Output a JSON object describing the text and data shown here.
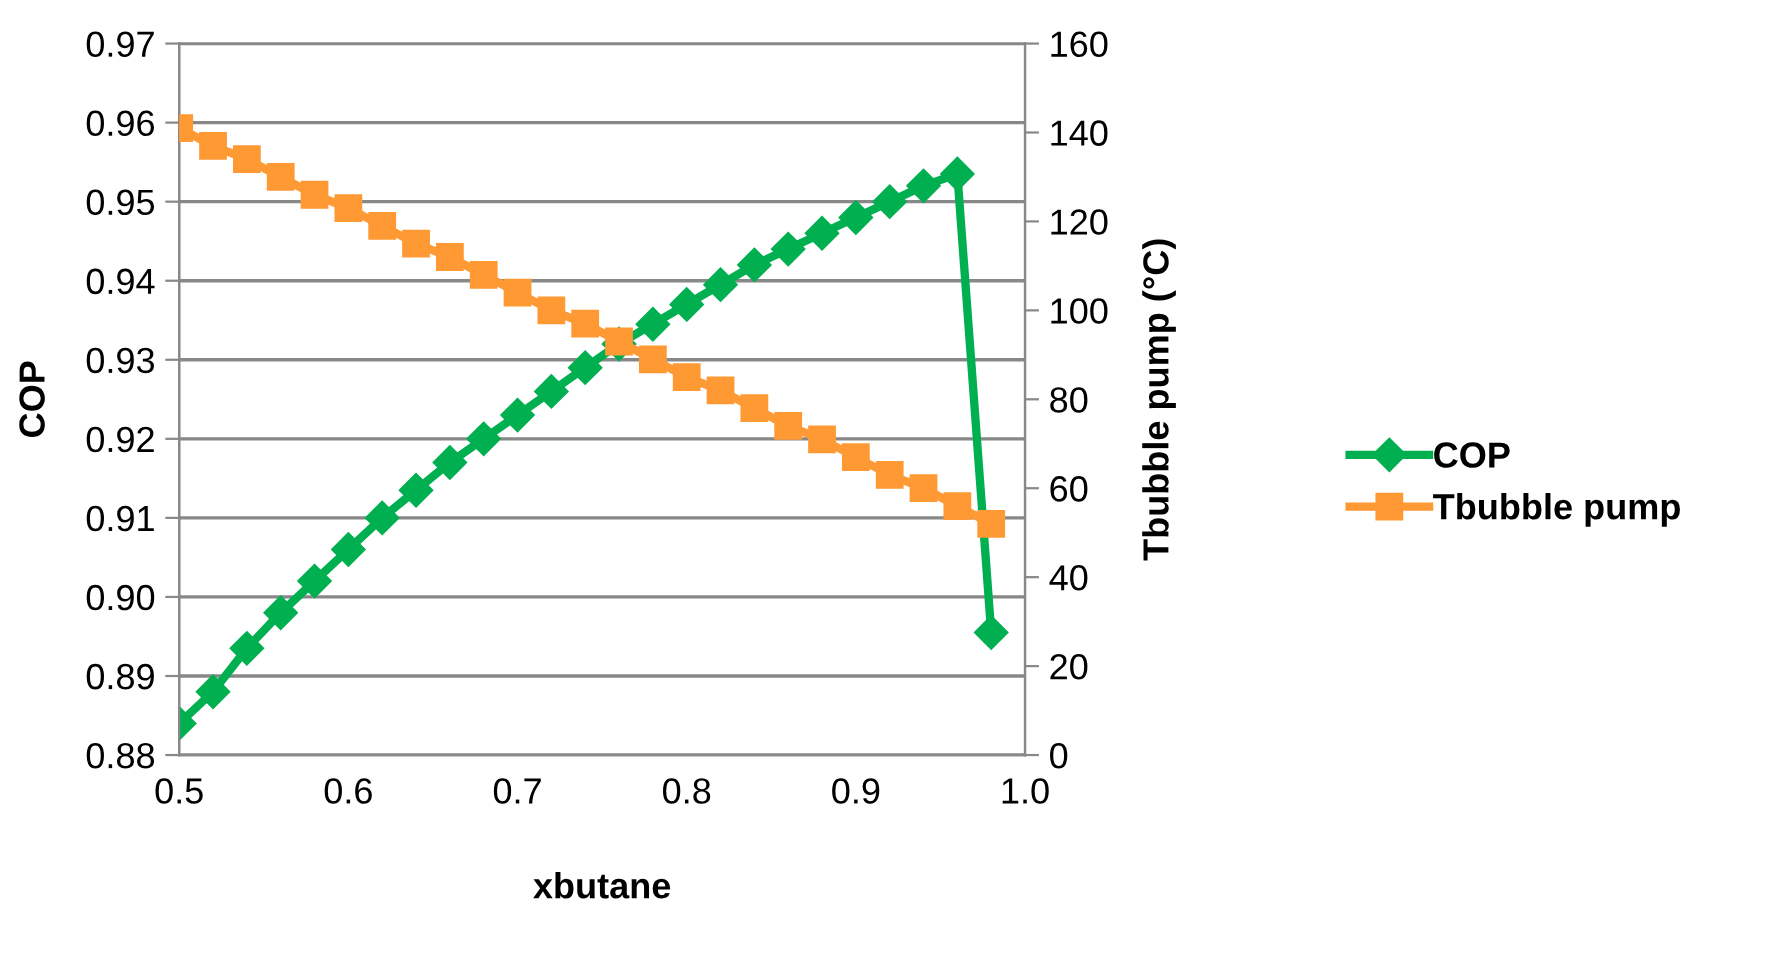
{
  "chart_data": {
    "type": "line",
    "xlabel": "xbutane",
    "ylabel": "COP",
    "y2label": "Tbubble pump (°C)",
    "x": [
      0.5,
      0.52,
      0.54,
      0.56,
      0.58,
      0.6,
      0.62,
      0.64,
      0.66,
      0.68,
      0.7,
      0.72,
      0.74,
      0.76,
      0.78,
      0.8,
      0.82,
      0.84,
      0.86,
      0.88,
      0.9,
      0.92,
      0.94,
      0.96,
      0.98
    ],
    "series": [
      {
        "name": "COP",
        "color": "#00b050",
        "marker": "diamond",
        "values": [
          0.884,
          0.888,
          0.8935,
          0.898,
          0.902,
          0.906,
          0.91,
          0.9135,
          0.917,
          0.92,
          0.923,
          0.926,
          0.929,
          0.932,
          0.9345,
          0.937,
          0.9395,
          0.942,
          0.944,
          0.946,
          0.948,
          0.95,
          0.952,
          0.9535,
          0.8955
        ]
      },
      {
        "name": "Tbubble pump",
        "color": "#ff9933",
        "marker": "square",
        "axis": "y2",
        "values": [
          141,
          137,
          134,
          130,
          126,
          123,
          119,
          115,
          112,
          108,
          104,
          100,
          97,
          93,
          89,
          85,
          82,
          78,
          74,
          71,
          67,
          63,
          60,
          56,
          52
        ]
      }
    ],
    "xlim": [
      0.5,
      1.0
    ],
    "xticks": [
      0.5,
      0.6,
      0.7,
      0.8,
      0.9,
      {
        "value": 1.0,
        "label": "1.0"
      }
    ],
    "ylim": [
      0.88,
      0.97
    ],
    "yticks": [
      0.88,
      0.89,
      {
        "value": 0.9,
        "label": "0.90"
      },
      0.91,
      0.92,
      0.93,
      0.94,
      0.95,
      0.96,
      0.97
    ],
    "y2lim": [
      0,
      160
    ],
    "y2ticks": [
      0,
      20,
      40,
      60,
      80,
      100,
      120,
      140,
      160
    ],
    "grid": "y",
    "legend": "right"
  }
}
